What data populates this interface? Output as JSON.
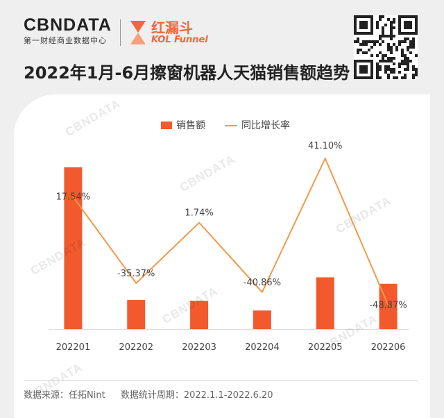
{
  "header": {
    "brand": "CBNDATA",
    "brand_sub": "第一财经商业数据中心",
    "partner_cn": "红漏斗",
    "partner_en": "KOL Funnel",
    "title": "2022年1月-6月擦窗机器人天猫销售额趋势"
  },
  "chart_data": {
    "type": "bar+line",
    "categories": [
      "202201",
      "202202",
      "202203",
      "202204",
      "202205",
      "202206"
    ],
    "series": [
      {
        "name": "销售额",
        "type": "bar",
        "values": [
          100,
          18,
          17.5,
          11.5,
          32,
          28
        ]
      },
      {
        "name": "同比增长率",
        "type": "line",
        "values": [
          17.54,
          -35.37,
          1.74,
          -40.86,
          41.1,
          -48.87
        ],
        "labels": [
          "17.54%",
          "-35.37%",
          "1.74%",
          "-40.86%",
          "41.10%",
          "-48.87%"
        ]
      }
    ],
    "bar_ylim": [
      0,
      100
    ],
    "line_ylim": [
      -55,
      45
    ],
    "legend_position": "top-center",
    "colors": {
      "bar": "#f25a2e",
      "line": "#f2994a"
    }
  },
  "footer": {
    "source": "数据来源：任拓Nint",
    "period": "数据统计周期：2022.1.1-2022.6.20"
  },
  "watermark": "CBNDATA"
}
